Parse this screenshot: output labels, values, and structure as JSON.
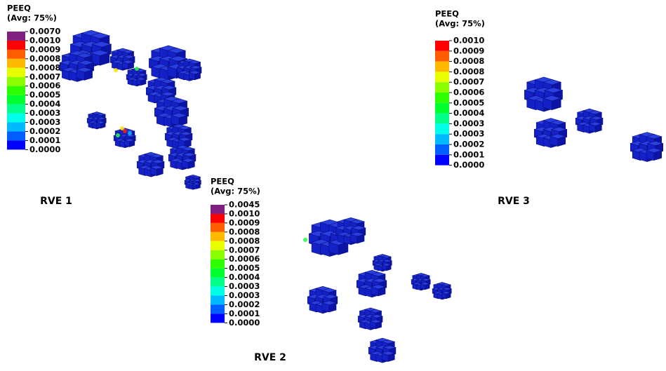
{
  "panels": [
    {
      "title": "PEEQ",
      "subtitle": "(Avg: 75%)",
      "caption": "RVE 1",
      "labels": [
        "0.0070",
        "0.0010",
        "0.0009",
        "0.0008",
        "0.0008",
        "0.0007",
        "0.0006",
        "0.0005",
        "0.0004",
        "0.0003",
        "0.0003",
        "0.0002",
        "0.0001",
        "0.0000"
      ]
    },
    {
      "title": "PEEQ",
      "subtitle": "(Avg: 75%)",
      "caption": "RVE 2",
      "labels": [
        "0.0045",
        "0.0010",
        "0.0009",
        "0.0008",
        "0.0008",
        "0.0007",
        "0.0006",
        "0.0005",
        "0.0004",
        "0.0003",
        "0.0003",
        "0.0002",
        "0.0001",
        "0.0000"
      ]
    },
    {
      "title": "PEEQ",
      "subtitle": "(Avg: 75%)",
      "caption": "RVE 3",
      "labels": [
        "0.0010",
        "0.0009",
        "0.0008",
        "0.0008",
        "0.0007",
        "0.0006",
        "0.0005",
        "0.0004",
        "0.0003",
        "0.0003",
        "0.0002",
        "0.0001",
        "0.0000"
      ]
    }
  ]
}
